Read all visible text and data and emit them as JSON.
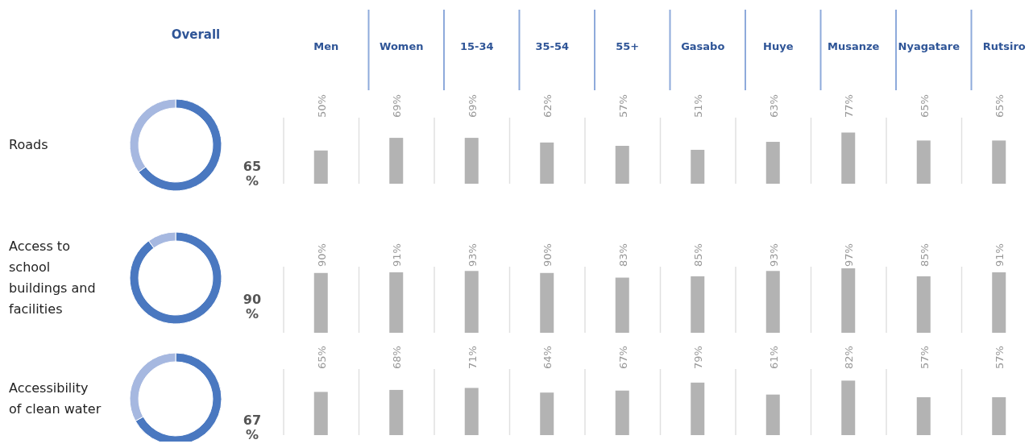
{
  "chart_data": [
    {
      "type": "donut",
      "title": "Roads",
      "annotations": [
        "Overall"
      ],
      "categories": [
        null,
        null
      ],
      "values": [
        65,
        35
      ],
      "colors": [
        "#4a78c0",
        "#a6b8e0"
      ],
      "value_labels": [
        "65 %",
        null
      ]
    },
    {
      "type": "bar",
      "categories": [
        "Men",
        "Women",
        "15-34",
        "35-54",
        "55+",
        "Gasabo",
        "Huye",
        "Musanze",
        "Nyagatare",
        "Rutsiro"
      ],
      "values": [
        50,
        69,
        69,
        62,
        57,
        51,
        63,
        77,
        65,
        65
      ],
      "color": "#b3b3b3",
      "value_labels": [
        "50%",
        "69%",
        "69%",
        "62%",
        "57%",
        "51%",
        "63%",
        "77%",
        "65%",
        "65%"
      ]
    },
    {
      "type": "donut",
      "title": "Access to school buildings and facilities",
      "categories": [
        null,
        null
      ],
      "values": [
        90,
        10
      ],
      "colors": [
        "#4a78c0",
        "#a6b8e0"
      ],
      "value_labels": [
        "90 %",
        null
      ]
    },
    {
      "type": "bar",
      "values": [
        90,
        91,
        93,
        90,
        83,
        85,
        93,
        97,
        85,
        91
      ],
      "color": "#b3b3b3",
      "value_labels": [
        "90%",
        "91%",
        "93%",
        "90%",
        "83%",
        "85%",
        "93%",
        "97%",
        "85%",
        "91%"
      ]
    },
    {
      "type": "donut",
      "title": "Accessibility of clean water",
      "categories": [
        null,
        null
      ],
      "values": [
        67,
        33
      ],
      "colors": [
        "#4a78c0",
        "#a6b8e0"
      ],
      "value_labels": [
        "67 %",
        null
      ]
    },
    {
      "type": "bar",
      "values": [
        65,
        68,
        71,
        64,
        67,
        79,
        61,
        82,
        57,
        57
      ],
      "color": "#b3b3b3",
      "value_labels": [
        "65%",
        "68%",
        "71%",
        "64%",
        "67%",
        "79%",
        "61%",
        "82%",
        "57%",
        "57%"
      ]
    }
  ]
}
